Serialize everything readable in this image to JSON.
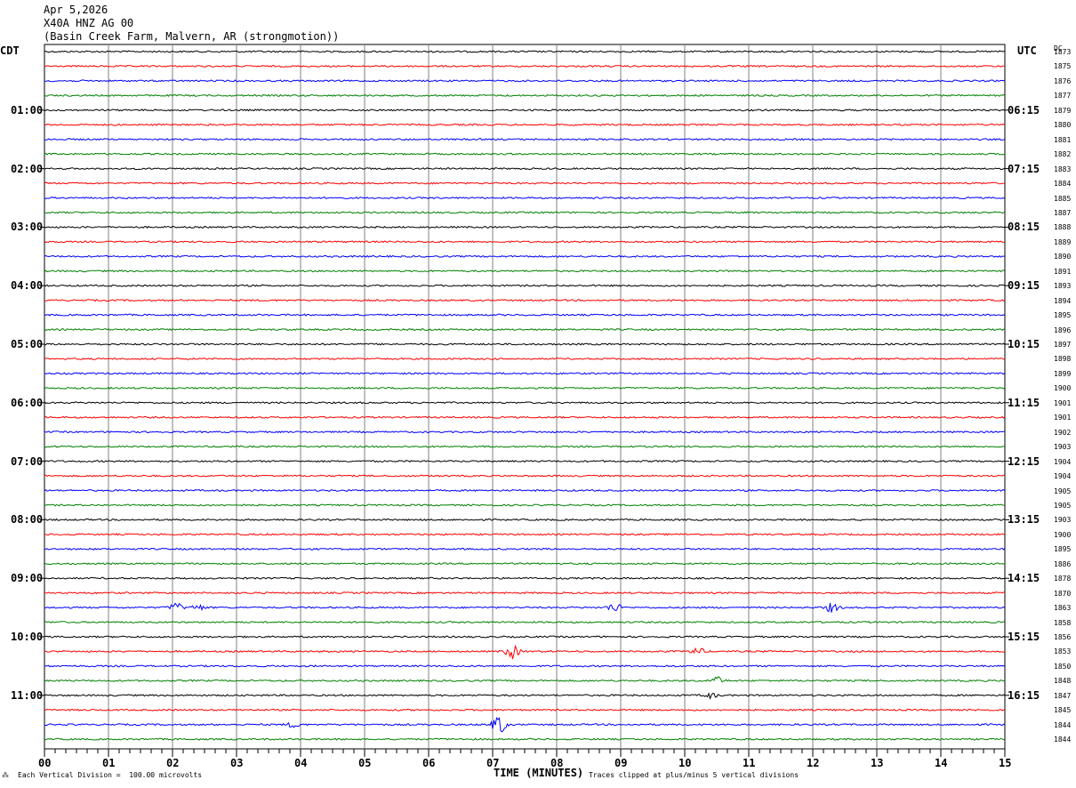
{
  "header": {
    "date": "Apr 5,2026",
    "station": "X40A HNZ AG 00",
    "location": "(Basin Creek Farm, Malvern, AR (strongmotion))"
  },
  "left_axis_title": "CDT",
  "right_axis_title": "UTC",
  "dc_title": "DC",
  "footer": {
    "scale_note": "Each Vertical Division =  100.00 microvolts",
    "xlabel": "TIME (MINUTES)",
    "clip_note": "Traces clipped at plus/minus 5 vertical divisions"
  },
  "colors": {
    "trace_cycle": [
      "#000000",
      "#ff0000",
      "#0000ff",
      "#008000"
    ],
    "grid": "#808080"
  },
  "chart_data": {
    "type": "line",
    "title": "",
    "xlabel": "TIME (MINUTES)",
    "xlim": [
      0,
      15
    ],
    "x_ticks": [
      "00",
      "01",
      "02",
      "03",
      "04",
      "05",
      "06",
      "07",
      "08",
      "09",
      "10",
      "11",
      "12",
      "13",
      "14",
      "15"
    ],
    "trace_count": 48,
    "minutes_per_trace": 15,
    "left_labels": [
      {
        "trace": 4,
        "label": "01:00"
      },
      {
        "trace": 8,
        "label": "02:00"
      },
      {
        "trace": 12,
        "label": "03:00"
      },
      {
        "trace": 16,
        "label": "04:00"
      },
      {
        "trace": 20,
        "label": "05:00"
      },
      {
        "trace": 24,
        "label": "06:00"
      },
      {
        "trace": 28,
        "label": "07:00"
      },
      {
        "trace": 32,
        "label": "08:00"
      },
      {
        "trace": 36,
        "label": "09:00"
      },
      {
        "trace": 40,
        "label": "10:00"
      },
      {
        "trace": 44,
        "label": "11:00"
      }
    ],
    "right_labels": [
      {
        "trace": 4,
        "label": "06:15"
      },
      {
        "trace": 8,
        "label": "07:15"
      },
      {
        "trace": 12,
        "label": "08:15"
      },
      {
        "trace": 16,
        "label": "09:15"
      },
      {
        "trace": 20,
        "label": "10:15"
      },
      {
        "trace": 24,
        "label": "11:15"
      },
      {
        "trace": 28,
        "label": "12:15"
      },
      {
        "trace": 32,
        "label": "13:15"
      },
      {
        "trace": 36,
        "label": "14:15"
      },
      {
        "trace": 40,
        "label": "15:15"
      },
      {
        "trace": 44,
        "label": "16:15"
      }
    ],
    "dc_offsets": [
      "1873",
      "1875",
      "1876",
      "1877",
      "1879",
      "1880",
      "1881",
      "1882",
      "1883",
      "1884",
      "1885",
      "1887",
      "1888",
      "1889",
      "1890",
      "1891",
      "1893",
      "1894",
      "1895",
      "1896",
      "1897",
      "1898",
      "1899",
      "1900",
      "1901",
      "1901",
      "1902",
      "1903",
      "1904",
      "1904",
      "1905",
      "1905",
      "1903",
      "1900",
      "1895",
      "1886",
      "1878",
      "1870",
      "1863",
      "1858",
      "1856",
      "1853",
      "1850",
      "1848",
      "1847",
      "1845",
      "1844",
      "1844"
    ],
    "events": [
      {
        "trace": 38,
        "minute": 2.05,
        "amplitude": 5
      },
      {
        "trace": 38,
        "minute": 2.4,
        "amplitude": 3
      },
      {
        "trace": 38,
        "minute": 8.9,
        "amplitude": 5
      },
      {
        "trace": 38,
        "minute": 12.3,
        "amplitude": 5
      },
      {
        "trace": 41,
        "minute": 7.3,
        "amplitude": 8
      },
      {
        "trace": 41,
        "minute": 10.2,
        "amplitude": 4
      },
      {
        "trace": 43,
        "minute": 10.5,
        "amplitude": 4
      },
      {
        "trace": 44,
        "minute": 10.4,
        "amplitude": 3
      },
      {
        "trace": 46,
        "minute": 7.1,
        "amplitude": 11
      },
      {
        "trace": 46,
        "minute": 3.9,
        "amplitude": 3
      }
    ]
  }
}
